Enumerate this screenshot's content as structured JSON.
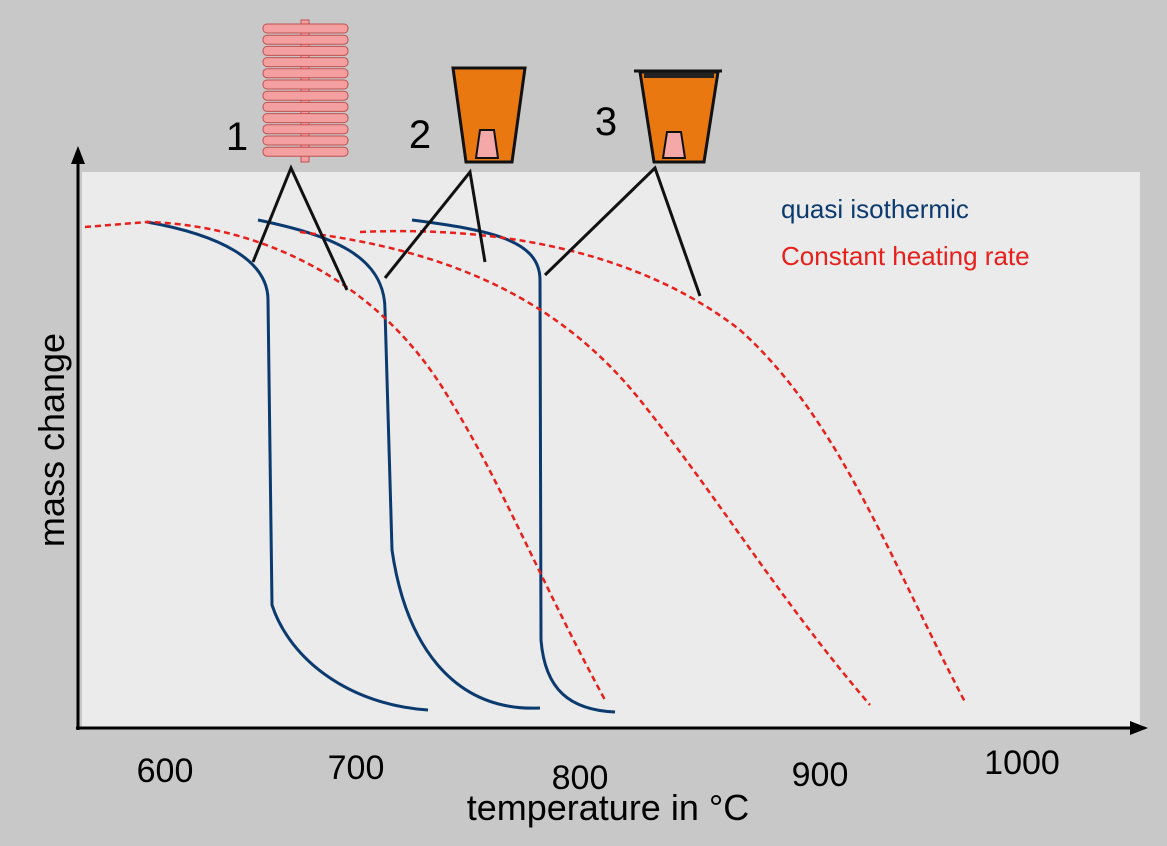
{
  "title_labels": {
    "sample_1": "1",
    "sample_2": "2",
    "sample_3": "3"
  },
  "y_axis_label": "mass change",
  "x_axis_label": "temperature in °C",
  "x_tick_labels": [
    "600",
    "700",
    "800",
    "900",
    "1000"
  ],
  "legend": [
    {
      "label": "quasi isothermic",
      "color": "#0b3a6f"
    },
    {
      "label": "Constant heating rate",
      "color": "#e8201c"
    }
  ]
}
